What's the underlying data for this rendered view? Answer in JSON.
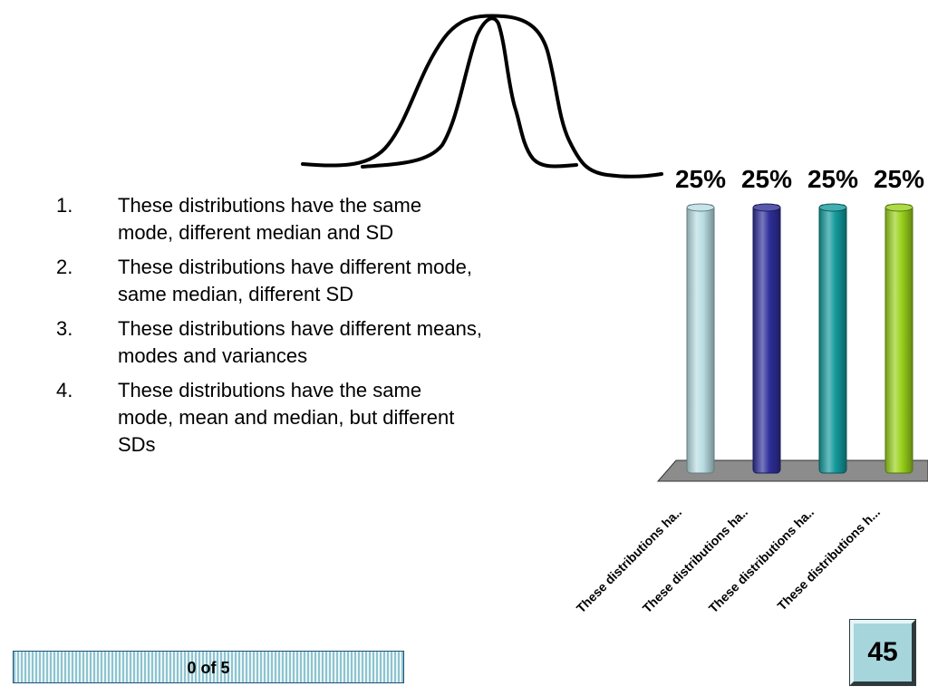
{
  "question": {
    "answers": [
      {
        "number": "1.",
        "text": "These distributions have the same mode, different median and SD"
      },
      {
        "number": "2.",
        "text": "These distributions have different mode, same median, different SD"
      },
      {
        "number": "3.",
        "text": "These distributions have different means, modes and variances"
      },
      {
        "number": "4.",
        "text": "These distributions have the same mode, mean and median, but different SDs"
      }
    ]
  },
  "chart_data": {
    "type": "bar",
    "categories": [
      "These distributions ha..",
      "These distributions ha..",
      "These distributions ha..",
      "These distributions h..."
    ],
    "values": [
      25,
      25,
      25,
      25
    ],
    "value_labels": [
      "25%",
      "25%",
      "25%",
      "25%"
    ],
    "ylim": [
      0,
      25
    ],
    "colors": [
      "#b8dde3",
      "#2e2f9a",
      "#139a9c",
      "#99d11b"
    ],
    "floor_color": "#8c8c8c",
    "grid": false,
    "legend": "none",
    "three_d": true
  },
  "progress": {
    "label": "0 of 5",
    "fraction": 0
  },
  "counter": {
    "value": "45",
    "color": "#a6d6dc"
  }
}
